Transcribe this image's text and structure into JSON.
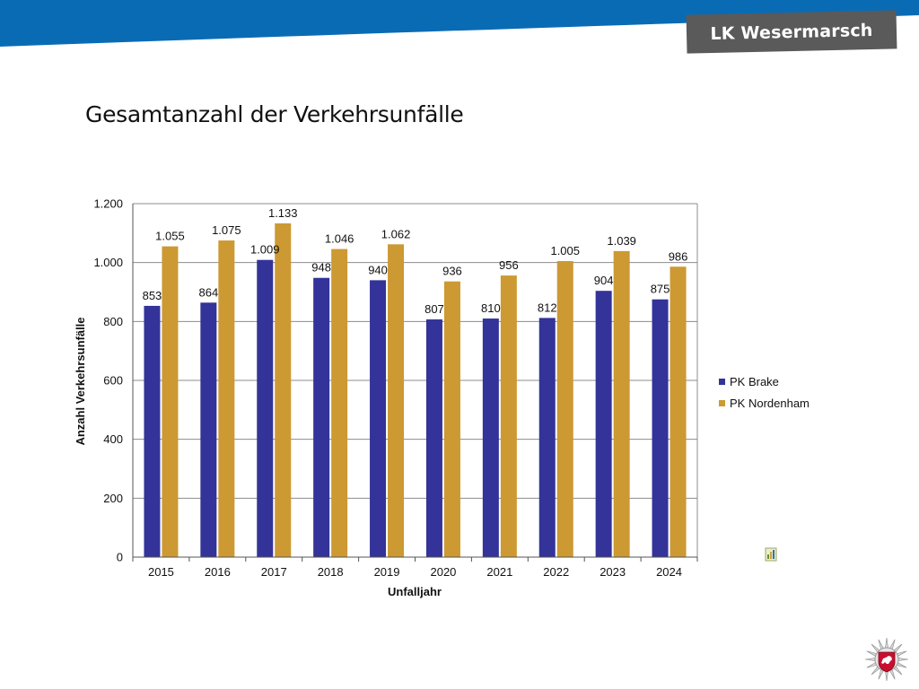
{
  "header": {
    "brand": "LK Wesermarsch",
    "band_color": "#0a6bb5",
    "brand_bg": "#5a5a5a"
  },
  "page_title": "Gesamtanzahl der Verkehrsunfälle",
  "chart_data": {
    "type": "bar",
    "categories": [
      "2015",
      "2016",
      "2017",
      "2018",
      "2019",
      "2020",
      "2021",
      "2022",
      "2023",
      "2024"
    ],
    "series": [
      {
        "name": "PK Brake",
        "color": "#333399",
        "values": [
          853,
          864,
          1009,
          948,
          940,
          807,
          810,
          812,
          904,
          875
        ],
        "labels": [
          "853",
          "864",
          "1.009",
          "948",
          "940",
          "807",
          "810",
          "812",
          "904",
          "875"
        ]
      },
      {
        "name": "PK Nordenham",
        "color": "#cc9933",
        "values": [
          1055,
          1075,
          1133,
          1046,
          1062,
          936,
          956,
          1005,
          1039,
          986
        ],
        "labels": [
          "1.055",
          "1.075",
          "1.133",
          "1.046",
          "1.062",
          "936",
          "956",
          "1.005",
          "1.039",
          "986"
        ]
      }
    ],
    "yticks": [
      0,
      200,
      400,
      600,
      800,
      1000,
      1200
    ],
    "ytick_labels": [
      "0",
      "200",
      "400",
      "600",
      "800",
      "1.000",
      "1.200"
    ],
    "ylim": [
      0,
      1200
    ],
    "xlabel": "Unfalljahr",
    "ylabel": "Anzahl Verkehrsunfälle",
    "grid": true,
    "legend_position": "right"
  }
}
